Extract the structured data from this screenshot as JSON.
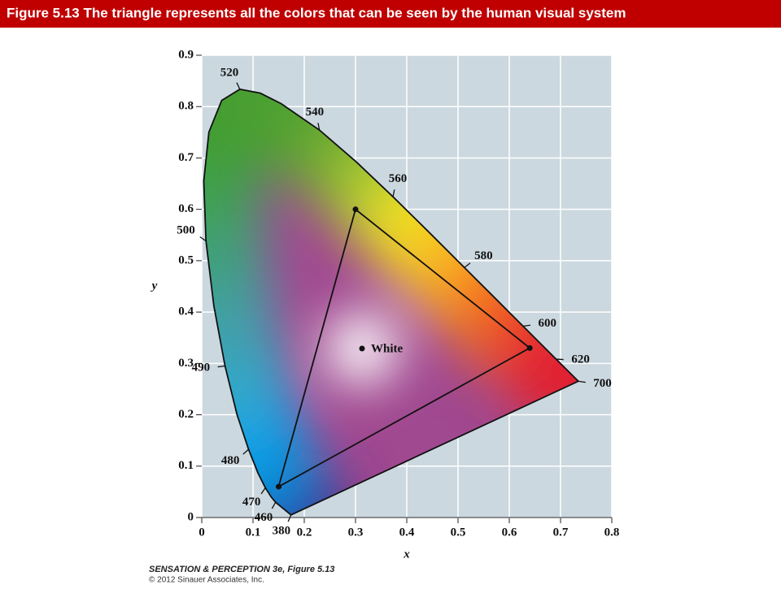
{
  "header": {
    "title": "Figure 5.13  The triangle represents all the colors that can be seen by the human visual system"
  },
  "chart_data": {
    "type": "chromaticity",
    "xlabel": "x",
    "ylabel": "y",
    "xlim": [
      0,
      0.8
    ],
    "ylim": [
      0,
      0.9
    ],
    "xticks": [
      0,
      0.1,
      0.2,
      0.3,
      0.4,
      0.5,
      0.6,
      0.7,
      0.8
    ],
    "yticks": [
      0,
      0.1,
      0.2,
      0.3,
      0.4,
      0.5,
      0.6,
      0.7,
      0.8,
      0.9
    ],
    "grid": true,
    "fill": "#a04890",
    "locus": [
      {
        "x": 0.1741,
        "y": 0.005,
        "color": "#4a2878"
      },
      {
        "x": 0.144,
        "y": 0.0297,
        "color": "#3a3090"
      },
      {
        "x": 0.1355,
        "y": 0.0399,
        "color": "#2a3aa0"
      },
      {
        "x": 0.1241,
        "y": 0.0578,
        "color": "#2048b0"
      },
      {
        "x": 0.1096,
        "y": 0.0868,
        "color": "#1868c0"
      },
      {
        "x": 0.0913,
        "y": 0.1327,
        "color": "#1090d8"
      },
      {
        "x": 0.0687,
        "y": 0.2007,
        "color": "#10a0e8"
      },
      {
        "x": 0.0454,
        "y": 0.295,
        "color": "#30a8c8"
      },
      {
        "x": 0.0235,
        "y": 0.4127,
        "color": "#40a0a8"
      },
      {
        "x": 0.0082,
        "y": 0.5384,
        "color": "#40a080"
      },
      {
        "x": 0.0039,
        "y": 0.6548,
        "color": "#40a058"
      },
      {
        "x": 0.0139,
        "y": 0.7502,
        "color": "#40a040"
      },
      {
        "x": 0.0389,
        "y": 0.812,
        "color": "#409c30"
      },
      {
        "x": 0.0743,
        "y": 0.8338,
        "color": "#409c30"
      },
      {
        "x": 0.1142,
        "y": 0.8262,
        "color": "#449a30"
      },
      {
        "x": 0.1547,
        "y": 0.8059,
        "color": "#48a030"
      },
      {
        "x": 0.2296,
        "y": 0.7543,
        "color": "#50a030"
      },
      {
        "x": 0.3016,
        "y": 0.6923,
        "color": "#70ac30"
      },
      {
        "x": 0.3731,
        "y": 0.6245,
        "color": "#a8c830"
      },
      {
        "x": 0.4441,
        "y": 0.5547,
        "color": "#f0e020"
      },
      {
        "x": 0.5125,
        "y": 0.4866,
        "color": "#f8c020"
      },
      {
        "x": 0.5752,
        "y": 0.4242,
        "color": "#f89020"
      },
      {
        "x": 0.627,
        "y": 0.3725,
        "color": "#f06020"
      },
      {
        "x": 0.6915,
        "y": 0.3083,
        "color": "#e83030"
      },
      {
        "x": 0.7347,
        "y": 0.2653,
        "color": "#e02030"
      }
    ],
    "wavelength_labels": [
      {
        "nm": 380,
        "x": 0.1741,
        "y": 0.005
      },
      {
        "nm": 460,
        "x": 0.144,
        "y": 0.0297
      },
      {
        "nm": 470,
        "x": 0.1241,
        "y": 0.0578
      },
      {
        "nm": 480,
        "x": 0.0913,
        "y": 0.1327
      },
      {
        "nm": 490,
        "x": 0.0454,
        "y": 0.295
      },
      {
        "nm": 500,
        "x": 0.0082,
        "y": 0.5384
      },
      {
        "nm": 520,
        "x": 0.0743,
        "y": 0.8338
      },
      {
        "nm": 540,
        "x": 0.2296,
        "y": 0.7543
      },
      {
        "nm": 560,
        "x": 0.3731,
        "y": 0.6245
      },
      {
        "nm": 580,
        "x": 0.5125,
        "y": 0.4866
      },
      {
        "nm": 600,
        "x": 0.627,
        "y": 0.3725
      },
      {
        "nm": 620,
        "x": 0.6915,
        "y": 0.3083
      },
      {
        "nm": 700,
        "x": 0.7347,
        "y": 0.2653
      }
    ],
    "triangle": {
      "x": [
        0.64,
        0.3,
        0.15
      ],
      "y": [
        0.33,
        0.6,
        0.06
      ]
    },
    "white": {
      "label": "White",
      "x": 0.3127,
      "y": 0.329
    }
  },
  "footer": {
    "line1": "SENSATION & PERCEPTION 3e, Figure 5.13",
    "line2": "© 2012 Sinauer Associates, Inc."
  }
}
